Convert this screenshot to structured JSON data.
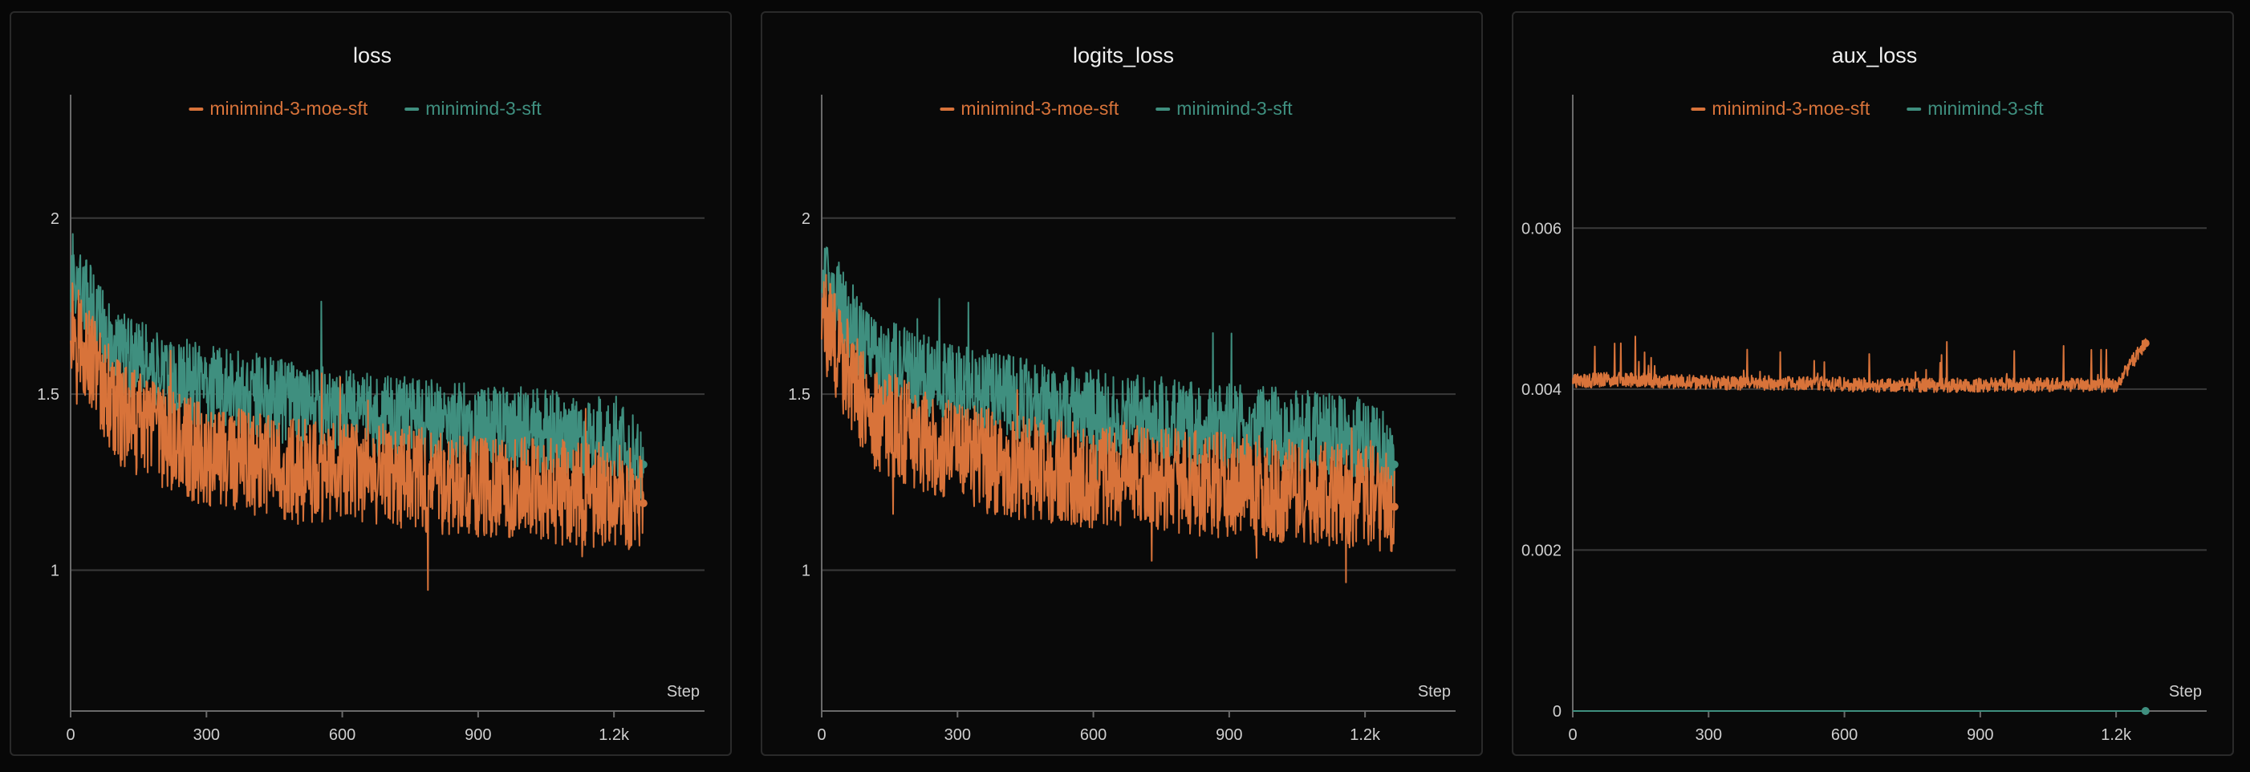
{
  "colors": {
    "moe": "#d8733a",
    "sft": "#3f8f7f",
    "grid": "#3a3a3a",
    "axis": "#6a6a6a",
    "background": "#090909"
  },
  "chart_data": [
    {
      "type": "line",
      "title": "loss",
      "xlabel": "Step",
      "ylabel": "",
      "xlim": [
        0,
        1400
      ],
      "ylim": [
        0.6,
        2.2
      ],
      "x_ticks": [
        0,
        300,
        600,
        900,
        1200
      ],
      "x_tick_labels": [
        "0",
        "300",
        "600",
        "900",
        "1.2k"
      ],
      "y_ticks": [
        1,
        1.5,
        2
      ],
      "y_tick_labels": [
        "1",
        "1.5",
        "2"
      ],
      "grid": true,
      "legend": "top-center",
      "series": [
        {
          "name": "minimind-3-moe-sft",
          "color": "moe",
          "x": [
            0,
            100,
            200,
            300,
            400,
            500,
            600,
            700,
            800,
            900,
            1000,
            1100,
            1200,
            1265
          ],
          "y": [
            1.72,
            1.45,
            1.38,
            1.33,
            1.3,
            1.28,
            1.27,
            1.27,
            1.25,
            1.24,
            1.23,
            1.22,
            1.21,
            1.19
          ]
        },
        {
          "name": "minimind-3-sft",
          "color": "sft",
          "x": [
            0,
            100,
            200,
            300,
            400,
            500,
            600,
            700,
            800,
            900,
            1000,
            1100,
            1200,
            1265
          ],
          "y": [
            1.85,
            1.62,
            1.56,
            1.52,
            1.5,
            1.47,
            1.45,
            1.44,
            1.42,
            1.41,
            1.4,
            1.39,
            1.38,
            1.3
          ]
        }
      ]
    },
    {
      "type": "line",
      "title": "logits_loss",
      "xlabel": "Step",
      "ylabel": "",
      "xlim": [
        0,
        1400
      ],
      "ylim": [
        0.6,
        2.2
      ],
      "x_ticks": [
        0,
        300,
        600,
        900,
        1200
      ],
      "x_tick_labels": [
        "0",
        "300",
        "600",
        "900",
        "1.2k"
      ],
      "y_ticks": [
        1,
        1.5,
        2
      ],
      "y_tick_labels": [
        "1",
        "1.5",
        "2"
      ],
      "grid": true,
      "legend": "top-center",
      "series": [
        {
          "name": "minimind-3-moe-sft",
          "color": "moe",
          "x": [
            0,
            100,
            200,
            300,
            400,
            500,
            600,
            700,
            800,
            900,
            1000,
            1100,
            1200,
            1265
          ],
          "y": [
            1.72,
            1.45,
            1.38,
            1.33,
            1.3,
            1.28,
            1.27,
            1.27,
            1.25,
            1.24,
            1.23,
            1.22,
            1.21,
            1.18
          ]
        },
        {
          "name": "minimind-3-sft",
          "color": "sft",
          "x": [
            0,
            100,
            200,
            300,
            400,
            500,
            600,
            700,
            800,
            900,
            1000,
            1100,
            1200,
            1265
          ],
          "y": [
            1.85,
            1.62,
            1.56,
            1.52,
            1.5,
            1.47,
            1.45,
            1.44,
            1.42,
            1.41,
            1.4,
            1.39,
            1.38,
            1.3
          ]
        }
      ]
    },
    {
      "type": "line",
      "title": "aux_loss",
      "xlabel": "Step",
      "ylabel": "",
      "xlim": [
        0,
        1400
      ],
      "ylim": [
        0,
        0.007
      ],
      "x_ticks": [
        0,
        300,
        600,
        900,
        1200
      ],
      "x_tick_labels": [
        "0",
        "300",
        "600",
        "900",
        "1.2k"
      ],
      "y_ticks": [
        0,
        0.002,
        0.004,
        0.006
      ],
      "y_tick_labels": [
        "0",
        "0.002",
        "0.004",
        "0.006"
      ],
      "grid": true,
      "legend": "top-center",
      "series": [
        {
          "name": "minimind-3-moe-sft",
          "color": "moe",
          "x": [
            0,
            100,
            200,
            300,
            400,
            500,
            600,
            700,
            800,
            900,
            1000,
            1100,
            1200,
            1265
          ],
          "y": [
            0.0041,
            0.00412,
            0.0041,
            0.00408,
            0.00408,
            0.00407,
            0.00406,
            0.00405,
            0.00405,
            0.00405,
            0.00405,
            0.00405,
            0.00405,
            0.00457
          ]
        },
        {
          "name": "minimind-3-sft",
          "color": "sft",
          "x": [
            0,
            1265
          ],
          "y": [
            0,
            0
          ]
        }
      ]
    }
  ]
}
